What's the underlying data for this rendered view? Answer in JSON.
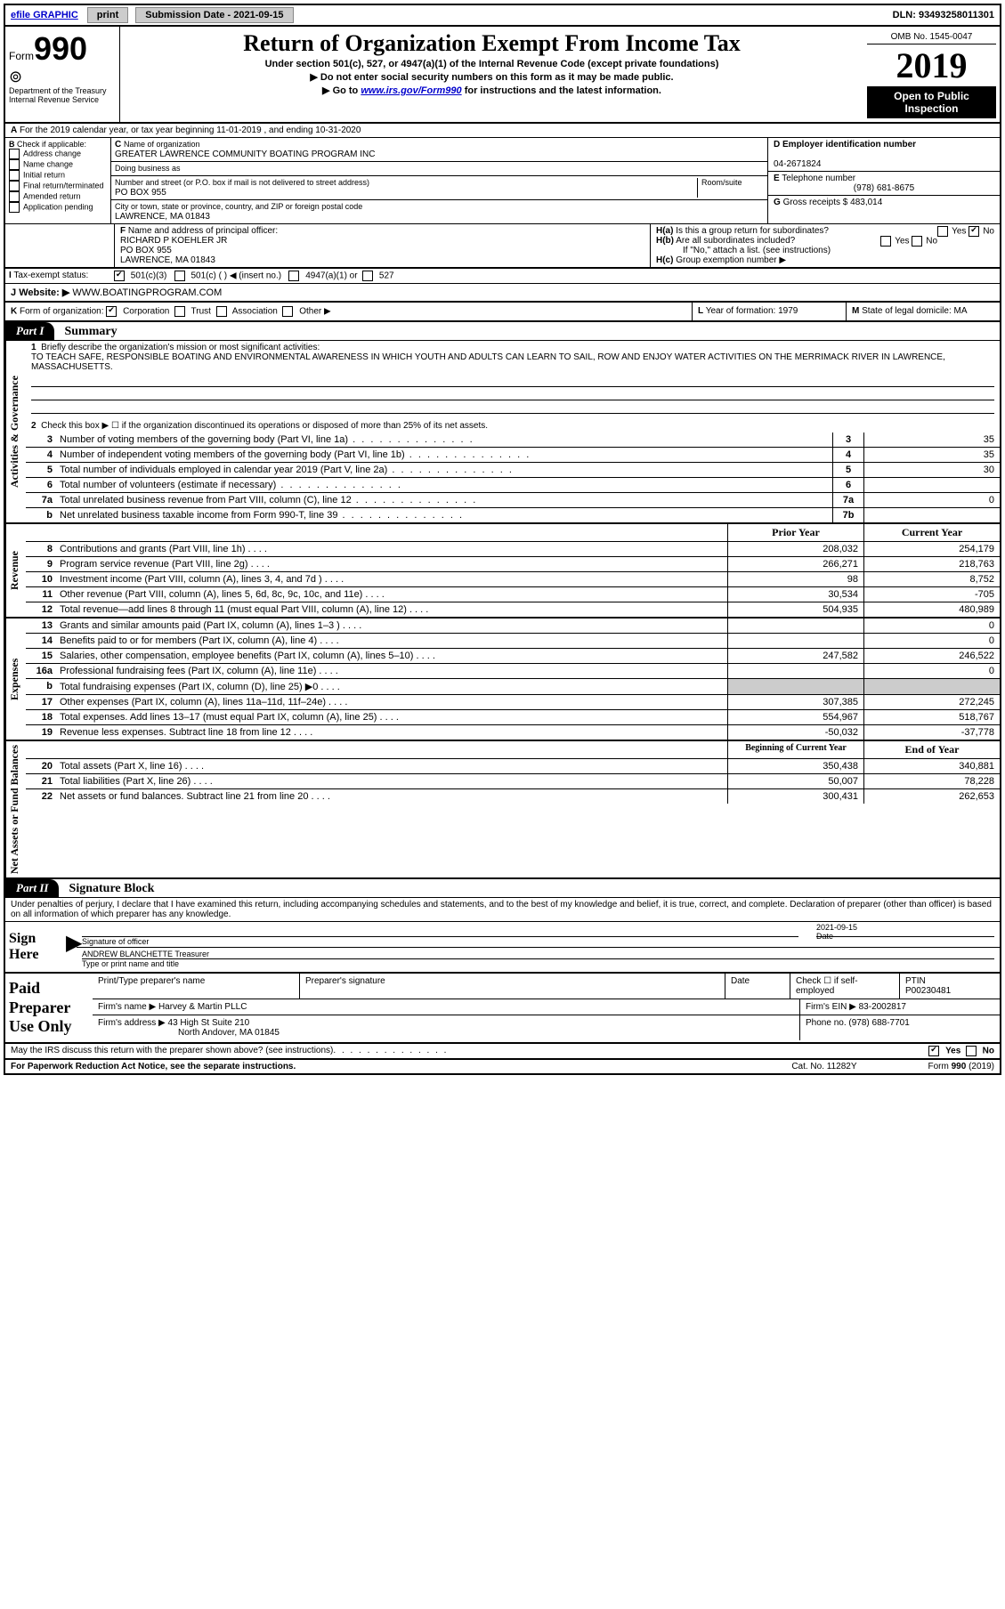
{
  "topbar": {
    "efile": "efile GRAPHIC",
    "print": "print",
    "submission_label": "Submission Date - 2021-09-15",
    "dln": "DLN: 93493258011301"
  },
  "header": {
    "form_prefix": "Form",
    "form_num": "990",
    "dept": "Department of the Treasury",
    "irs": "Internal Revenue Service",
    "title": "Return of Organization Exempt From Income Tax",
    "subtitle": "Under section 501(c), 527, or 4947(a)(1) of the Internal Revenue Code (except private foundations)",
    "note1": "Do not enter social security numbers on this form as it may be made public.",
    "note2_pre": "Go to ",
    "note2_link": "www.irs.gov/Form990",
    "note2_post": " for instructions and the latest information.",
    "omb": "OMB No. 1545-0047",
    "year": "2019",
    "open": "Open to Public Inspection"
  },
  "row_a": {
    "text": "For the 2019 calendar year, or tax year beginning 11-01-2019    , and ending 10-31-2020"
  },
  "section_b": {
    "label": "Check if applicable:",
    "opts": [
      "Address change",
      "Name change",
      "Initial return",
      "Final return/terminated",
      "Amended return",
      "Application pending"
    ]
  },
  "section_c": {
    "name_label": "Name of organization",
    "name": "GREATER LAWRENCE COMMUNITY BOATING PROGRAM INC",
    "dba_label": "Doing business as",
    "addr_label": "Number and street (or P.O. box if mail is not delivered to street address)",
    "room_label": "Room/suite",
    "addr": "PO BOX 955",
    "city_label": "City or town, state or province, country, and ZIP or foreign postal code",
    "city": "LAWRENCE, MA  01843"
  },
  "section_d": {
    "ein_label": "Employer identification number",
    "ein": "04-2671824",
    "tel_label": "Telephone number",
    "tel": "(978) 681-8675",
    "gross_label": "Gross receipts $",
    "gross": "483,014"
  },
  "section_f": {
    "label": "Name and address of principal officer:",
    "name": "RICHARD P KOEHLER JR",
    "addr1": "PO BOX 955",
    "addr2": "LAWRENCE, MA  01843"
  },
  "section_h": {
    "ha": "Is this a group return for subordinates?",
    "hb": "Are all subordinates included?",
    "hb_note": "If \"No,\" attach a list. (see instructions)",
    "hc": "Group exemption number ▶",
    "yes": "Yes",
    "no": "No"
  },
  "tax_status": {
    "label": "Tax-exempt status:",
    "opt1": "501(c)(3)",
    "opt2": "501(c) (   ) ◀ (insert no.)",
    "opt3": "4947(a)(1) or",
    "opt4": "527"
  },
  "website": {
    "label": "Website: ▶",
    "value": "WWW.BOATINGPROGRAM.COM"
  },
  "row_k": {
    "label": "Form of organization:",
    "opts": [
      "Corporation",
      "Trust",
      "Association",
      "Other ▶"
    ],
    "l_label": "Year of formation:",
    "l_val": "1979",
    "m_label": "State of legal domicile:",
    "m_val": "MA"
  },
  "part1": {
    "hdr": "Part I",
    "title": "Summary",
    "line1_label": "Briefly describe the organization's mission or most significant activities:",
    "mission": "TO TEACH SAFE, RESPONSIBLE BOATING AND ENVIRONMENTAL AWARENESS IN WHICH YOUTH AND ADULTS CAN LEARN TO SAIL, ROW AND ENJOY WATER ACTIVITIES ON THE MERRIMACK RIVER IN LAWRENCE, MASSACHUSETTS.",
    "line2": "Check this box ▶ ☐ if the organization discontinued its operations or disposed of more than 25% of its net assets."
  },
  "side_labels": {
    "ag": "Activities & Governance",
    "rev": "Revenue",
    "exp": "Expenses",
    "net": "Net Assets or Fund Balances"
  },
  "lines_ag": [
    {
      "n": "3",
      "d": "Number of voting members of the governing body (Part VI, line 1a)",
      "box": "3",
      "v": "35"
    },
    {
      "n": "4",
      "d": "Number of independent voting members of the governing body (Part VI, line 1b)",
      "box": "4",
      "v": "35"
    },
    {
      "n": "5",
      "d": "Total number of individuals employed in calendar year 2019 (Part V, line 2a)",
      "box": "5",
      "v": "30"
    },
    {
      "n": "6",
      "d": "Total number of volunteers (estimate if necessary)",
      "box": "6",
      "v": ""
    },
    {
      "n": "7a",
      "d": "Total unrelated business revenue from Part VIII, column (C), line 12",
      "box": "7a",
      "v": "0"
    },
    {
      "n": "b",
      "d": "Net unrelated business taxable income from Form 990-T, line 39",
      "box": "7b",
      "v": ""
    }
  ],
  "col_hdrs": {
    "py": "Prior Year",
    "cy": "Current Year"
  },
  "lines_rev": [
    {
      "n": "8",
      "d": "Contributions and grants (Part VIII, line 1h)",
      "py": "208,032",
      "cy": "254,179"
    },
    {
      "n": "9",
      "d": "Program service revenue (Part VIII, line 2g)",
      "py": "266,271",
      "cy": "218,763"
    },
    {
      "n": "10",
      "d": "Investment income (Part VIII, column (A), lines 3, 4, and 7d )",
      "py": "98",
      "cy": "8,752"
    },
    {
      "n": "11",
      "d": "Other revenue (Part VIII, column (A), lines 5, 6d, 8c, 9c, 10c, and 11e)",
      "py": "30,534",
      "cy": "-705"
    },
    {
      "n": "12",
      "d": "Total revenue—add lines 8 through 11 (must equal Part VIII, column (A), line 12)",
      "py": "504,935",
      "cy": "480,989"
    }
  ],
  "lines_exp": [
    {
      "n": "13",
      "d": "Grants and similar amounts paid (Part IX, column (A), lines 1–3 )",
      "py": "",
      "cy": "0"
    },
    {
      "n": "14",
      "d": "Benefits paid to or for members (Part IX, column (A), line 4)",
      "py": "",
      "cy": "0"
    },
    {
      "n": "15",
      "d": "Salaries, other compensation, employee benefits (Part IX, column (A), lines 5–10)",
      "py": "247,582",
      "cy": "246,522"
    },
    {
      "n": "16a",
      "d": "Professional fundraising fees (Part IX, column (A), line 11e)",
      "py": "",
      "cy": "0"
    },
    {
      "n": "b",
      "d": "Total fundraising expenses (Part IX, column (D), line 25) ▶0",
      "py": "GRAY",
      "cy": "GRAY"
    },
    {
      "n": "17",
      "d": "Other expenses (Part IX, column (A), lines 11a–11d, 11f–24e)",
      "py": "307,385",
      "cy": "272,245"
    },
    {
      "n": "18",
      "d": "Total expenses. Add lines 13–17 (must equal Part IX, column (A), line 25)",
      "py": "554,967",
      "cy": "518,767"
    },
    {
      "n": "19",
      "d": "Revenue less expenses. Subtract line 18 from line 12",
      "py": "-50,032",
      "cy": "-37,778"
    }
  ],
  "col_hdrs2": {
    "b": "Beginning of Current Year",
    "e": "End of Year"
  },
  "lines_net": [
    {
      "n": "20",
      "d": "Total assets (Part X, line 16)",
      "py": "350,438",
      "cy": "340,881"
    },
    {
      "n": "21",
      "d": "Total liabilities (Part X, line 26)",
      "py": "50,007",
      "cy": "78,228"
    },
    {
      "n": "22",
      "d": "Net assets or fund balances. Subtract line 21 from line 20",
      "py": "300,431",
      "cy": "262,653"
    }
  ],
  "part2": {
    "hdr": "Part II",
    "title": "Signature Block",
    "perjury": "Under penalties of perjury, I declare that I have examined this return, including accompanying schedules and statements, and to the best of my knowledge and belief, it is true, correct, and complete. Declaration of preparer (other than officer) is based on all information of which preparer has any knowledge."
  },
  "sign": {
    "here": "Sign Here",
    "sig_label": "Signature of officer",
    "date_label": "Date",
    "date": "2021-09-15",
    "name": "ANDREW BLANCHETTE Treasurer",
    "name_label": "Type or print name and title"
  },
  "paid": {
    "label": "Paid Preparer Use Only",
    "h1": "Print/Type preparer's name",
    "h2": "Preparer's signature",
    "h3": "Date",
    "h4_a": "Check ☐ if self-employed",
    "h5": "PTIN",
    "ptin": "P00230481",
    "firm_name_label": "Firm's name    ▶",
    "firm_name": "Harvey & Martin PLLC",
    "firm_ein_label": "Firm's EIN ▶",
    "firm_ein": "83-2002817",
    "firm_addr_label": "Firm's address ▶",
    "firm_addr1": "43 High St Suite 210",
    "firm_addr2": "North Andover, MA  01845",
    "phone_label": "Phone no.",
    "phone": "(978) 688-7701"
  },
  "discuss": {
    "q": "May the IRS discuss this return with the preparer shown above? (see instructions)",
    "yes": "Yes",
    "no": "No"
  },
  "footer": {
    "left": "For Paperwork Reduction Act Notice, see the separate instructions.",
    "mid": "Cat. No. 11282Y",
    "right": "Form 990 (2019)"
  },
  "labels": {
    "A": "A",
    "B": "B",
    "C": "C",
    "D": "D",
    "E": "E",
    "F": "F",
    "G": "G",
    "H_a": "H(a)",
    "H_b": "H(b)",
    "H_c": "H(c)",
    "I": "I",
    "J": "J",
    "K": "K",
    "L": "L",
    "M": "M",
    "one": "1",
    "two": "2"
  }
}
